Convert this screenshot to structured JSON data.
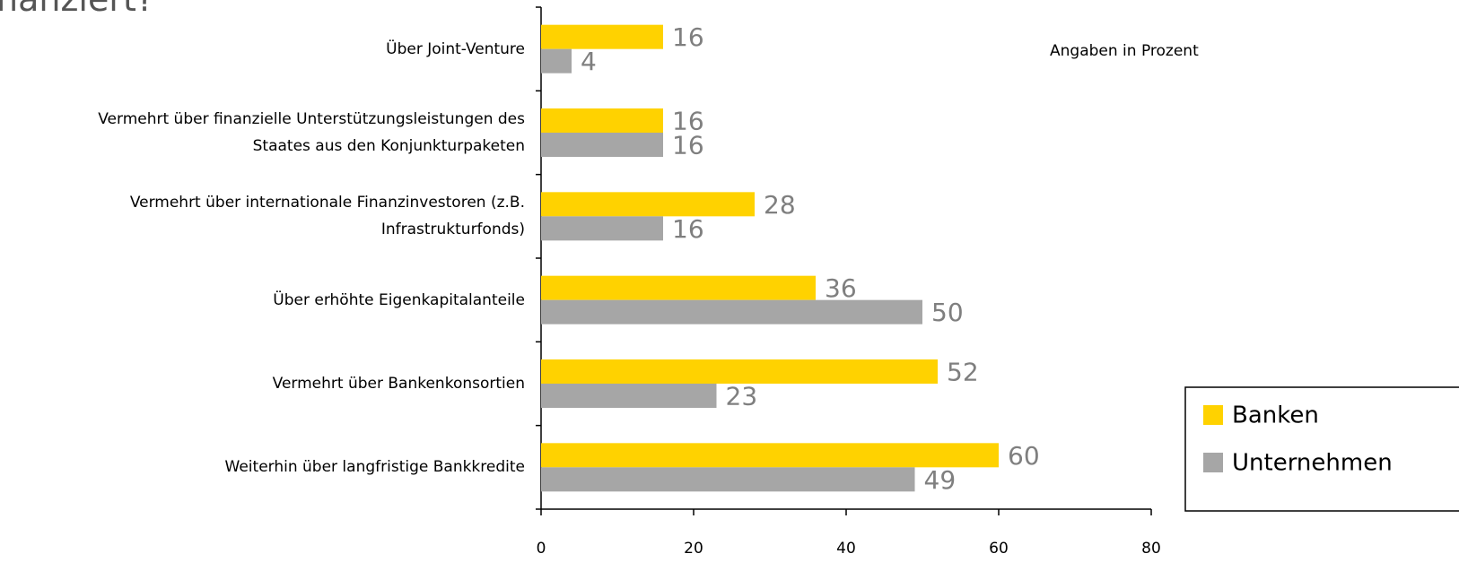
{
  "chart_data": {
    "type": "bar",
    "orientation": "horizontal",
    "title": "nanziert?",
    "annotation": "Angaben in Prozent",
    "categories": [
      "Über Joint-Venture",
      "Vermehrt über finanzielle Unterstützungsleistungen des\nStaates aus den Konjunkturpaketen",
      "Vermehrt über internationale Finanzinvestoren (z.B.\nInfrastrukturfonds)",
      "Über erhöhte Eigenkapitalanteile",
      "Vermehrt über Bankenkonsortien",
      "Weiterhin über langfristige Bankkredite"
    ],
    "series": [
      {
        "name": "Banken",
        "color": "#ffd200",
        "values": [
          16,
          16,
          28,
          36,
          52,
          60
        ]
      },
      {
        "name": "Unternehmen",
        "color": "#a6a6a6",
        "values": [
          4,
          16,
          16,
          50,
          23,
          49
        ]
      }
    ],
    "xlim": [
      0,
      80
    ],
    "xticks": [
      0,
      20,
      40,
      60,
      80
    ],
    "grid": false
  }
}
